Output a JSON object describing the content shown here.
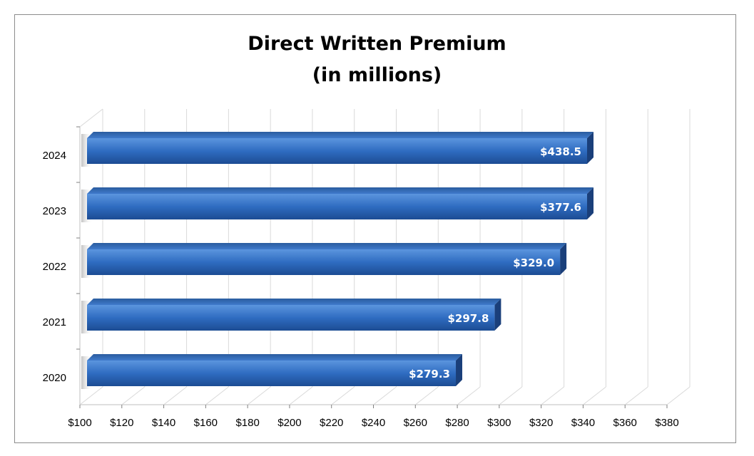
{
  "chart_data": {
    "type": "bar",
    "orientation": "horizontal",
    "title": "Direct Written Premium",
    "subtitle": "(in millions)",
    "categories": [
      "2020",
      "2021",
      "2022",
      "2023",
      "2024"
    ],
    "values": [
      279.3,
      297.8,
      329.0,
      377.6,
      438.5
    ],
    "data_labels": [
      "$279.3",
      "$297.8",
      "$329.0",
      "$377.6",
      "$438.5"
    ],
    "x_ticks": [
      "$100",
      "$120",
      "$140",
      "$160",
      "$180",
      "$200",
      "$220",
      "$240",
      "$260",
      "$280",
      "$300",
      "$320",
      "$340",
      "$360",
      "$380"
    ],
    "xlim": [
      100,
      380
    ],
    "grid": true,
    "legend": "none",
    "bar_color": "#2e6bc0"
  }
}
